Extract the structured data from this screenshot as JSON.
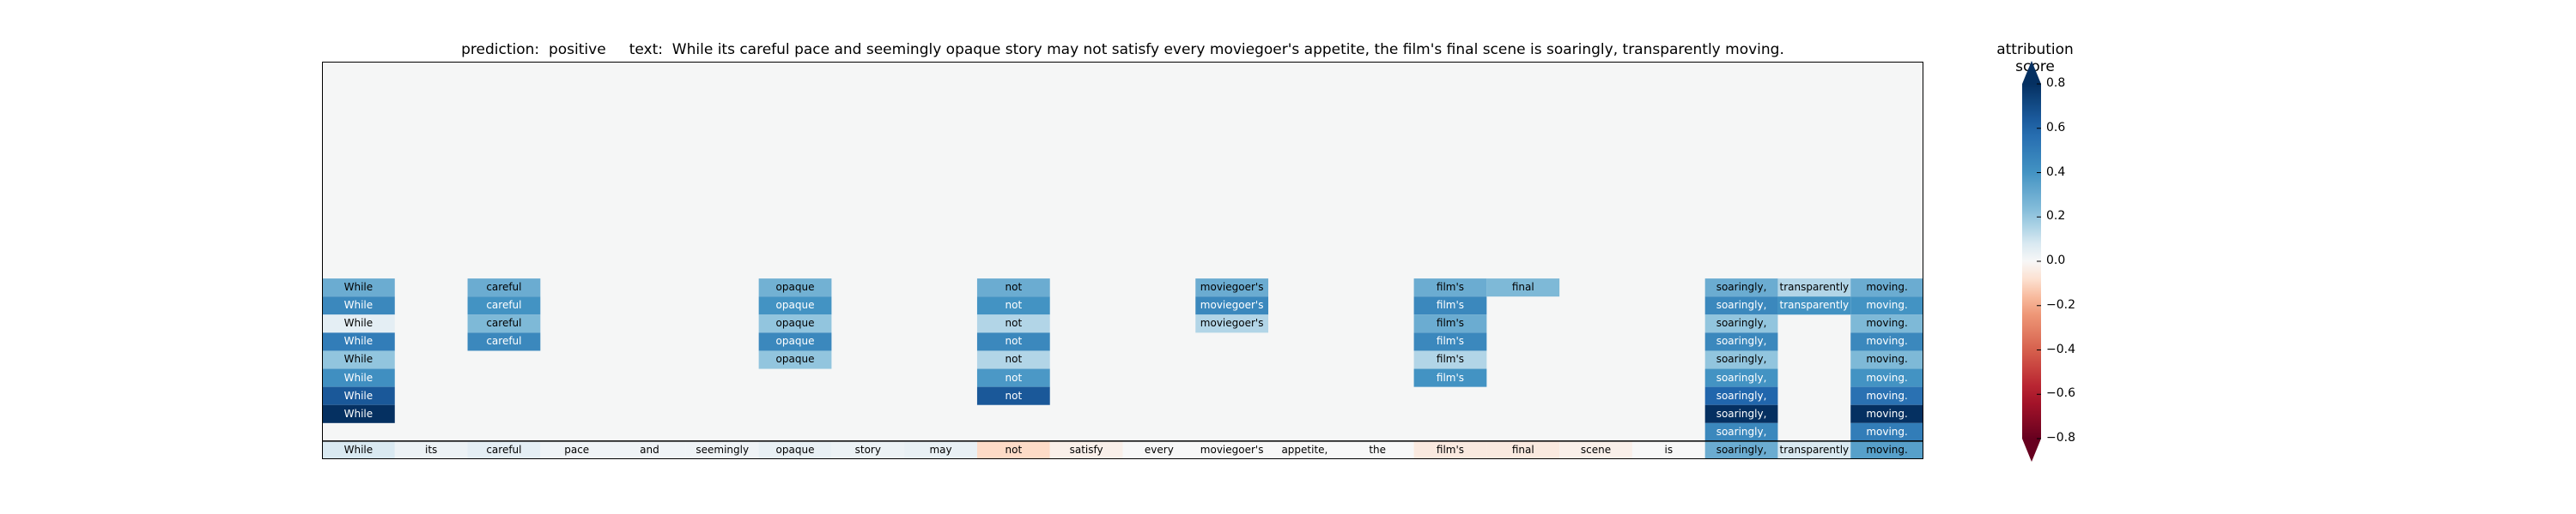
{
  "title": {
    "prediction_label": "prediction:",
    "prediction_value": "positive",
    "text_label": "text:",
    "text_value": "While its careful pace and seemingly opaque story may not satisfy every moviegoer's appetite, the film's final scene is soaringly, transparently moving."
  },
  "colors": {
    "background_cell": "#f5f6f6",
    "label_dark_text": "#000000",
    "label_light_text": "#ffffff"
  },
  "chart_data": {
    "type": "heatmap",
    "tokens": [
      "While",
      "its",
      "careful",
      "pace",
      "and",
      "seemingly",
      "opaque",
      "story",
      "may",
      "not",
      "satisfy",
      "every",
      "moviegoer's",
      "appetite,",
      "the",
      "film's",
      "final",
      "scene",
      "is",
      "soaringly,",
      "transparently",
      "moving."
    ],
    "bottom_row_scores": [
      0.08,
      0.03,
      0.05,
      0.02,
      0.02,
      0.02,
      0.04,
      0.03,
      0.04,
      -0.1,
      -0.03,
      0.0,
      0.0,
      0.0,
      0.0,
      -0.05,
      -0.05,
      -0.03,
      0.0,
      0.3,
      0.08,
      0.35
    ],
    "columns": [
      {
        "token": "While",
        "scores": [
          0.3,
          0.45,
          0.05,
          0.5,
          0.2,
          0.42,
          0.65,
          0.9
        ]
      },
      {
        "token": "careful",
        "scores": [
          0.3,
          0.4,
          0.25,
          0.45
        ]
      },
      {
        "token": "opaque",
        "scores": [
          0.28,
          0.4,
          0.2,
          0.45,
          0.2
        ]
      },
      {
        "token": "not",
        "scores": [
          0.3,
          0.4,
          0.15,
          0.45,
          0.15,
          0.38,
          0.65
        ]
      },
      {
        "token": "moviegoer's",
        "scores": [
          0.3,
          0.45,
          0.15
        ]
      },
      {
        "token": "film's",
        "scores": [
          0.3,
          0.45,
          0.3,
          0.45,
          0.15,
          0.4
        ]
      },
      {
        "token": "final",
        "scores": [
          0.25
        ]
      },
      {
        "token": "soaringly,",
        "scores": [
          0.3,
          0.45,
          0.2,
          0.45,
          0.2,
          0.4,
          0.6,
          0.8,
          0.45
        ]
      },
      {
        "token": "transparently",
        "scores": [
          0.15,
          0.4
        ]
      },
      {
        "token": "moving.",
        "scores": [
          0.3,
          0.4,
          0.25,
          0.45,
          0.25,
          0.4,
          0.55,
          0.9,
          0.5
        ]
      }
    ],
    "rows_above_bottom": 9,
    "colorbar": {
      "label": "attribution score",
      "colormap": "RdBu",
      "range": [
        -0.8,
        0.8
      ],
      "ticks": [
        -0.8,
        -0.6,
        -0.4,
        -0.2,
        0.0,
        0.2,
        0.4,
        0.6,
        0.8
      ],
      "tick_labels": [
        "−0.8",
        "−0.6",
        "−0.4",
        "−0.2",
        "0.0",
        "0.2",
        "0.4",
        "0.6",
        "0.8"
      ],
      "extend": "both"
    }
  }
}
